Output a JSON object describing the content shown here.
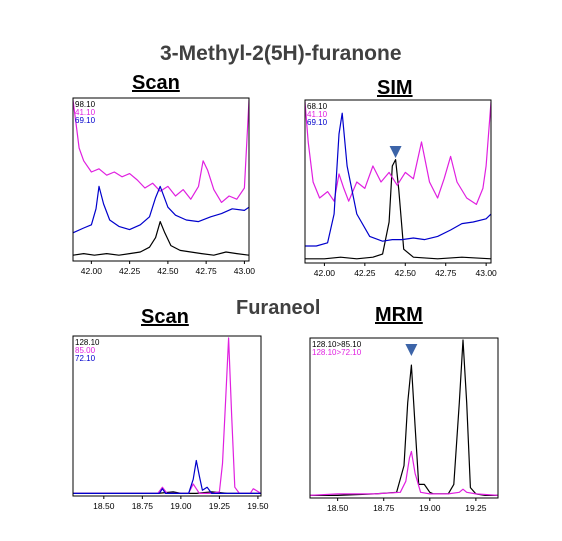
{
  "header": {
    "title": "3-Methyl-2(5H)-furanone",
    "section2_title": "Furaneol"
  },
  "chart_data": [
    {
      "id": "scan1",
      "type": "line",
      "title": "Scan",
      "legend": [
        "98.10",
        "41.10",
        "69.10"
      ],
      "xticks": [
        "42.00",
        "42.25",
        "42.50",
        "42.75",
        "43.00"
      ],
      "xlim": [
        41.88,
        43.03
      ],
      "ylim": [
        0,
        100
      ],
      "series": [
        {
          "name": "98.10",
          "color": "#000000",
          "x": [
            41.88,
            41.95,
            42.02,
            42.1,
            42.18,
            42.25,
            42.32,
            42.38,
            42.42,
            42.45,
            42.48,
            42.52,
            42.58,
            42.65,
            42.72,
            42.8,
            42.88,
            42.95,
            43.03
          ],
          "y": [
            3,
            4,
            3,
            4,
            3,
            4,
            5,
            8,
            14,
            24,
            17,
            9,
            6,
            5,
            4,
            3,
            5,
            4,
            3
          ]
        },
        {
          "name": "41.10",
          "color": "#e020e0",
          "x": [
            41.88,
            41.9,
            41.92,
            41.95,
            42.0,
            42.05,
            42.1,
            42.15,
            42.2,
            42.25,
            42.3,
            42.35,
            42.4,
            42.45,
            42.5,
            42.55,
            42.6,
            42.65,
            42.7,
            42.73,
            42.76,
            42.8,
            42.85,
            42.9,
            42.95,
            43.0,
            43.03
          ],
          "y": [
            100,
            85,
            70,
            62,
            55,
            57,
            53,
            55,
            52,
            54,
            50,
            45,
            48,
            43,
            46,
            40,
            44,
            38,
            46,
            62,
            56,
            44,
            36,
            40,
            38,
            45,
            100
          ]
        },
        {
          "name": "69.10",
          "color": "#0000cc",
          "x": [
            41.88,
            41.95,
            42.0,
            42.03,
            42.05,
            42.08,
            42.12,
            42.18,
            42.25,
            42.32,
            42.38,
            42.42,
            42.45,
            42.5,
            42.55,
            42.62,
            42.7,
            42.78,
            42.85,
            42.92,
            43.0,
            43.03
          ],
          "y": [
            17,
            20,
            22,
            32,
            46,
            35,
            25,
            21,
            19,
            22,
            27,
            39,
            46,
            33,
            28,
            25,
            24,
            27,
            29,
            32,
            31,
            33
          ]
        }
      ]
    },
    {
      "id": "sim",
      "type": "line",
      "title": "SIM",
      "legend": [
        "68.10",
        "41.10",
        "69.10"
      ],
      "xticks": [
        "42.00",
        "42.25",
        "42.50",
        "42.75",
        "43.00"
      ],
      "xlim": [
        41.88,
        43.03
      ],
      "ylim": [
        0,
        100
      ],
      "marker_x": 42.44,
      "series": [
        {
          "name": "68.10",
          "color": "#000000",
          "x": [
            41.88,
            42.0,
            42.1,
            42.2,
            42.3,
            42.36,
            42.4,
            42.42,
            42.44,
            42.46,
            42.49,
            42.55,
            42.7,
            42.85,
            43.03
          ],
          "y": [
            2,
            2,
            3,
            2,
            3,
            5,
            25,
            60,
            64,
            45,
            8,
            3,
            2,
            3,
            2
          ]
        },
        {
          "name": "41.10",
          "color": "#e020e0",
          "x": [
            41.88,
            41.9,
            41.93,
            41.97,
            42.02,
            42.06,
            42.09,
            42.12,
            42.15,
            42.2,
            42.25,
            42.3,
            42.35,
            42.4,
            42.45,
            42.5,
            42.55,
            42.6,
            42.65,
            42.7,
            42.74,
            42.78,
            42.82,
            42.88,
            42.94,
            42.98,
            43.0,
            43.03
          ],
          "y": [
            100,
            75,
            50,
            40,
            44,
            38,
            55,
            46,
            38,
            50,
            46,
            60,
            50,
            56,
            48,
            56,
            52,
            75,
            50,
            40,
            52,
            66,
            50,
            40,
            36,
            46,
            60,
            100
          ]
        },
        {
          "name": "69.10",
          "color": "#0000cc",
          "x": [
            41.88,
            41.95,
            42.02,
            42.06,
            42.09,
            42.11,
            42.14,
            42.2,
            42.28,
            42.36,
            42.42,
            42.48,
            42.55,
            42.62,
            42.7,
            42.78,
            42.85,
            42.92,
            43.0,
            43.03
          ],
          "y": [
            10,
            10,
            12,
            30,
            80,
            93,
            60,
            30,
            16,
            13,
            14,
            14,
            15,
            14,
            16,
            20,
            24,
            25,
            27,
            30
          ]
        }
      ]
    },
    {
      "id": "scan2",
      "type": "line",
      "title": "Scan",
      "legend": [
        "128.10",
        "85.00",
        "72.10"
      ],
      "xticks": [
        "18.50",
        "18.75",
        "19.00",
        "19.25",
        "19.50"
      ],
      "xlim": [
        18.3,
        19.52
      ],
      "ylim": [
        0,
        100
      ],
      "series": [
        {
          "name": "128.10",
          "color": "#000000",
          "x": [
            18.3,
            18.5,
            18.7,
            18.85,
            18.95,
            19.0,
            19.1,
            19.2,
            19.3,
            19.4,
            19.52
          ],
          "y": [
            1,
            1,
            1,
            1,
            2,
            1,
            1,
            2,
            1,
            1,
            1
          ]
        },
        {
          "name": "85.00",
          "color": "#e020e0",
          "x": [
            18.3,
            18.5,
            18.7,
            18.85,
            18.88,
            18.91,
            18.95,
            19.05,
            19.08,
            19.1,
            19.12,
            19.15,
            19.2,
            19.25,
            19.27,
            19.29,
            19.31,
            19.33,
            19.35,
            19.38,
            19.45,
            19.47,
            19.52
          ],
          "y": [
            1,
            1,
            1,
            1,
            5,
            1,
            1,
            1,
            7,
            4,
            1,
            1,
            1,
            2,
            20,
            60,
            100,
            50,
            5,
            1,
            1,
            4,
            1
          ]
        },
        {
          "name": "72.10",
          "color": "#0000cc",
          "x": [
            18.3,
            18.5,
            18.7,
            18.86,
            18.88,
            18.9,
            18.95,
            19.05,
            19.08,
            19.1,
            19.12,
            19.14,
            19.17,
            19.2,
            19.3,
            19.4,
            19.52
          ],
          "y": [
            1,
            1,
            1,
            1,
            4,
            1,
            1,
            1,
            10,
            22,
            12,
            3,
            5,
            1,
            1,
            1,
            1
          ]
        }
      ]
    },
    {
      "id": "mrm",
      "type": "line",
      "title": "MRM",
      "legend": [
        "128.10>85.10",
        "128.10>72.10"
      ],
      "xticks": [
        "18.50",
        "18.75",
        "19.00",
        "19.25"
      ],
      "xlim": [
        18.35,
        19.37
      ],
      "ylim": [
        0,
        100
      ],
      "marker_x": 18.9,
      "series": [
        {
          "name": "128.10>85.10",
          "color": "#000000",
          "x": [
            18.35,
            18.5,
            18.7,
            18.82,
            18.86,
            18.88,
            18.9,
            18.92,
            18.94,
            18.97,
            19.0,
            19.02,
            19.05,
            19.1,
            19.13,
            19.16,
            19.18,
            19.2,
            19.22,
            19.25,
            19.3,
            19.37
          ],
          "y": [
            1,
            1,
            2,
            3,
            20,
            60,
            84,
            45,
            8,
            8,
            3,
            2,
            2,
            2,
            8,
            60,
            100,
            60,
            6,
            2,
            1,
            1
          ]
        },
        {
          "name": "128.10>72.10",
          "color": "#e020e0",
          "x": [
            18.35,
            18.5,
            18.7,
            18.84,
            18.87,
            18.89,
            18.9,
            18.92,
            18.95,
            19.0,
            19.1,
            19.16,
            19.18,
            19.2,
            19.25,
            19.37
          ],
          "y": [
            1,
            2,
            2,
            3,
            10,
            25,
            29,
            15,
            3,
            2,
            2,
            3,
            5,
            3,
            2,
            1
          ]
        }
      ]
    }
  ]
}
